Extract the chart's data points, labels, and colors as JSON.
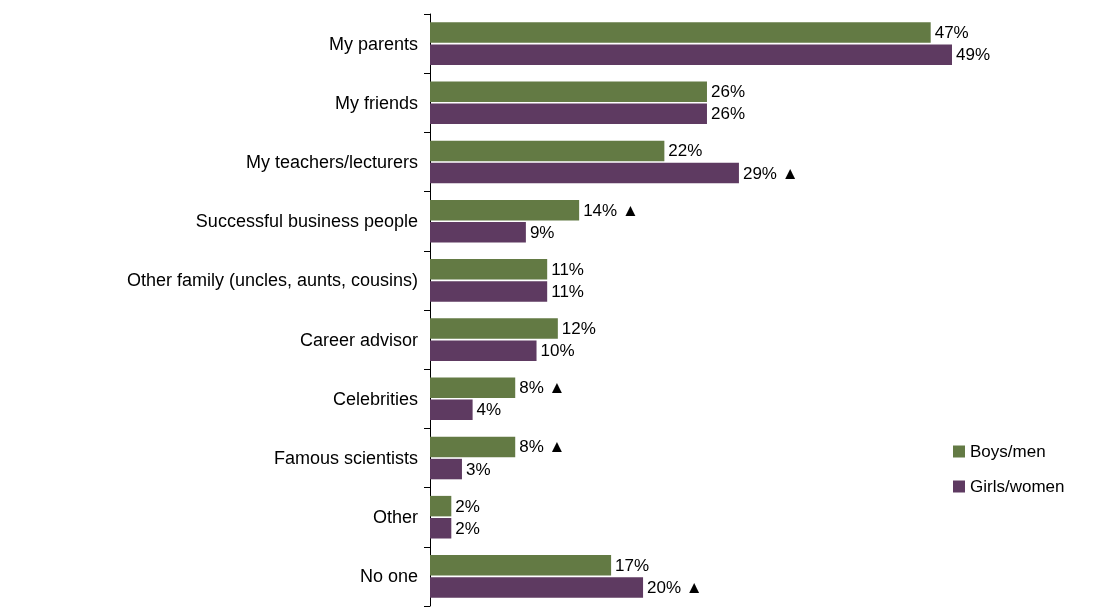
{
  "chart_data": {
    "type": "bar",
    "orientation": "horizontal",
    "categories": [
      "My parents",
      "My friends",
      "My teachers/lecturers",
      "Successful business people",
      "Other family (uncles, aunts, cousins)",
      "Career advisor",
      "Celebrities",
      "Famous scientists",
      "Other",
      "No one"
    ],
    "series": [
      {
        "name": "Boys/men",
        "color": "#637a44",
        "values": [
          47,
          26,
          22,
          14,
          11,
          12,
          8,
          8,
          2,
          17
        ],
        "value_labels": [
          "47%",
          "26%",
          "22%",
          "14% ▲",
          "11%",
          "12%",
          "8% ▲",
          "8% ▲",
          "2%",
          "17%"
        ]
      },
      {
        "name": "Girls/women",
        "color": "#5e3a61",
        "values": [
          49,
          26,
          29,
          9,
          11,
          10,
          4,
          3,
          2,
          20
        ],
        "value_labels": [
          "49%",
          "26%",
          "29% ▲",
          "9%",
          "11%",
          "10%",
          "4%",
          "3%",
          "2%",
          "20% ▲"
        ]
      }
    ],
    "legend": "right",
    "grid": false
  }
}
